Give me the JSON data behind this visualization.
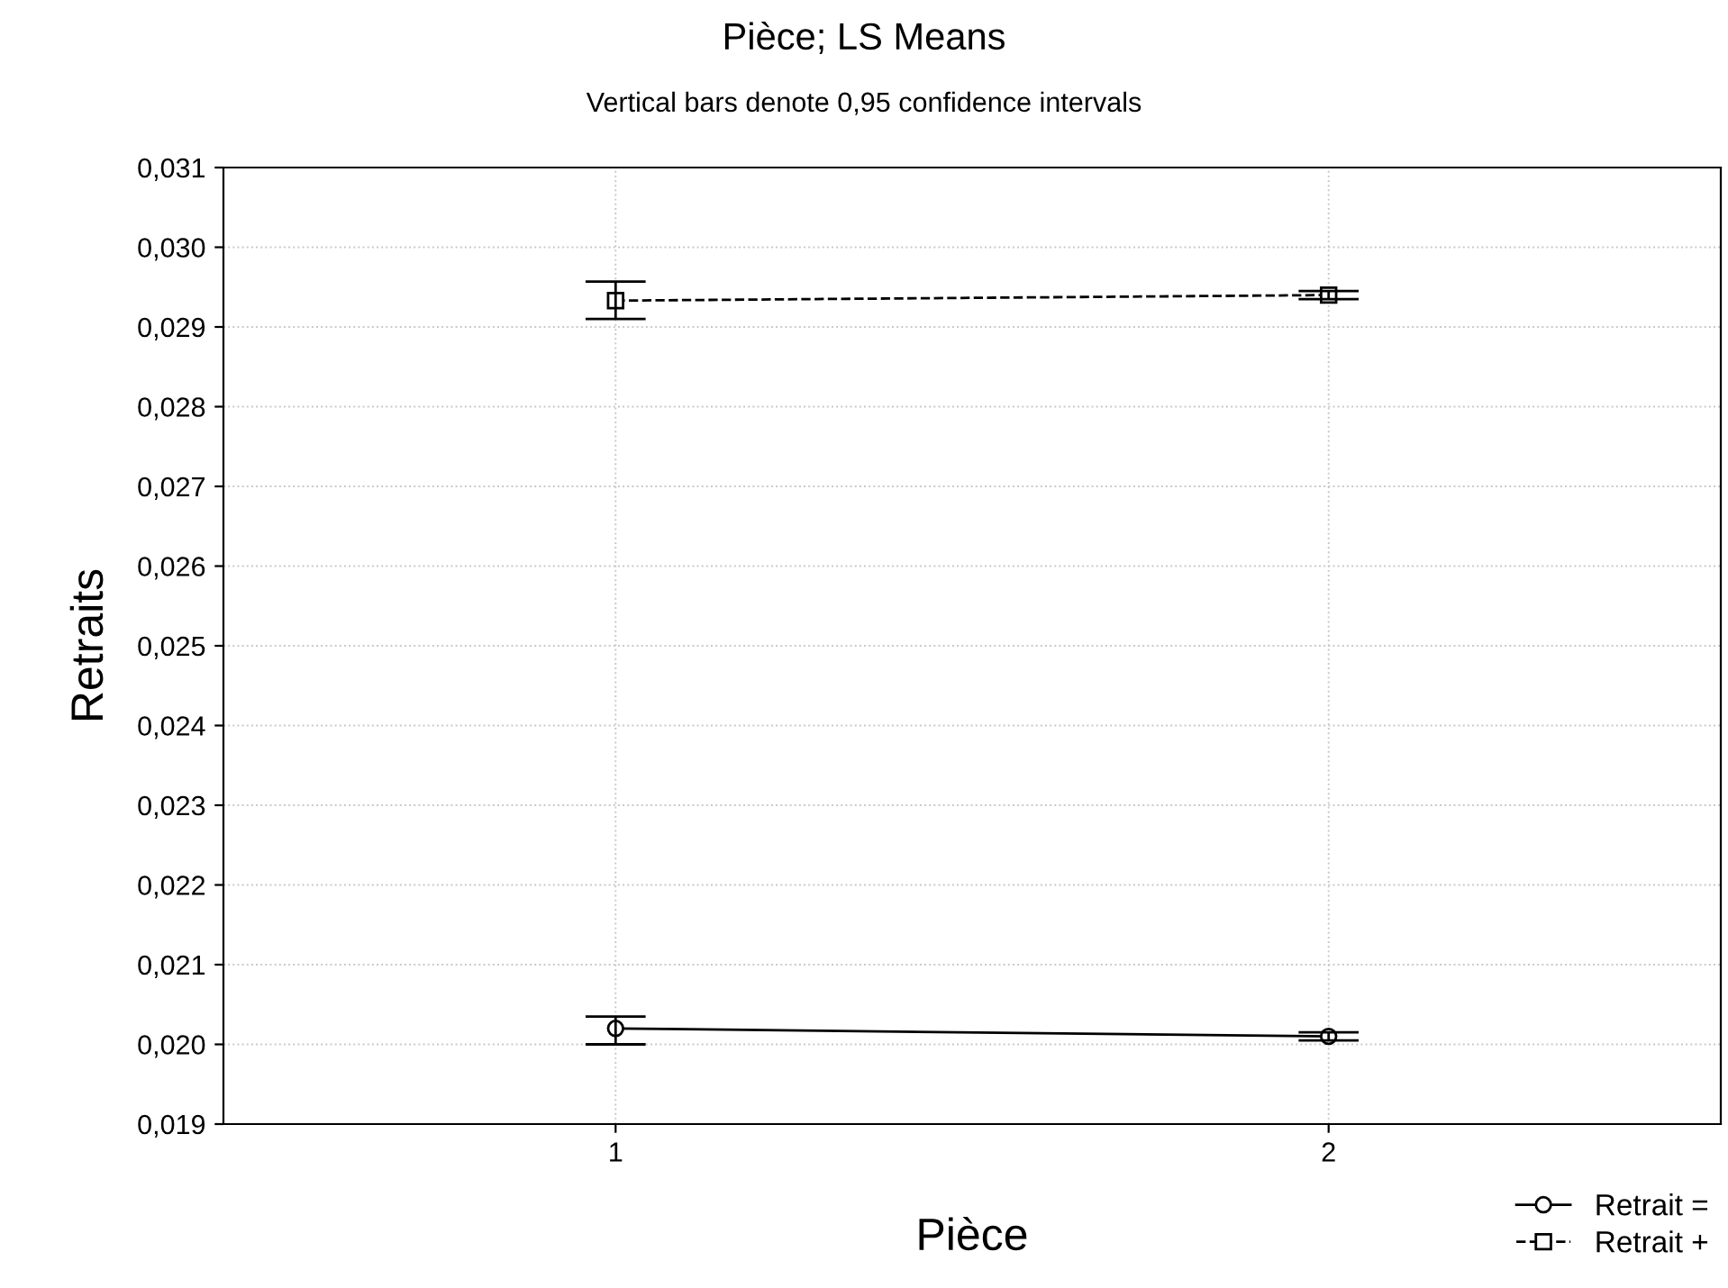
{
  "chart_data": {
    "type": "line",
    "title": "Pièce; LS Means",
    "subtitle": "Vertical bars denote 0,95 confidence intervals",
    "xlabel": "Pièce",
    "ylabel": "Retraits",
    "categories": [
      "1",
      "2"
    ],
    "series": [
      {
        "name": "Retrait =",
        "color": "#000000",
        "marker": "circle",
        "line_style": "solid",
        "values": [
          0.0202,
          0.0201
        ],
        "errors": [
          [
            0.02,
            0.02035
          ],
          [
            0.02005,
            0.02015
          ]
        ]
      },
      {
        "name": "Retrait +",
        "color": "#000000",
        "marker": "square",
        "line_style": "dashed",
        "values": [
          0.02933,
          0.0294
        ],
        "errors": [
          [
            0.0291,
            0.02957
          ],
          [
            0.02935,
            0.02945
          ]
        ]
      }
    ],
    "ylim": [
      0.019,
      0.031
    ],
    "yticks": [
      {
        "value": 0.019,
        "label": "0,019"
      },
      {
        "value": 0.02,
        "label": "0,020"
      },
      {
        "value": 0.021,
        "label": "0,021"
      },
      {
        "value": 0.022,
        "label": "0,022"
      },
      {
        "value": 0.023,
        "label": "0,023"
      },
      {
        "value": 0.024,
        "label": "0,024"
      },
      {
        "value": 0.025,
        "label": "0,025"
      },
      {
        "value": 0.026,
        "label": "0,026"
      },
      {
        "value": 0.027,
        "label": "0,027"
      },
      {
        "value": 0.028,
        "label": "0,028"
      },
      {
        "value": 0.029,
        "label": "0,029"
      },
      {
        "value": 0.03,
        "label": "0,030"
      },
      {
        "value": 0.031,
        "label": "0,031"
      }
    ],
    "grid": true,
    "legend": "bottom right"
  }
}
